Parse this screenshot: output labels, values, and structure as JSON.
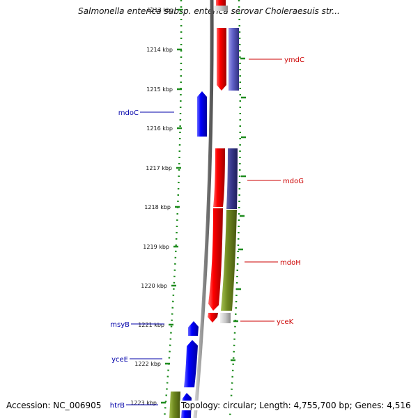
{
  "title": "Salmonella enterica subsp. enterica serovar Choleraesuis str...",
  "footer": {
    "accession": "Accession: NC_006905",
    "summary": "Topology: circular; Length: 4,755,700 bp; Genes: 4,516"
  },
  "colors": {
    "forward_cds": "#e00000",
    "reverse_cds": "#0000e0",
    "cog_purple": "#6060c8",
    "cog_olive": "#708a20",
    "cog_gray": "#b8b8b8",
    "backbone": "#888888",
    "tick_green": "#1e8c1e",
    "label_red": "#cc0000",
    "label_blue": "#0000aa"
  },
  "ticks": [
    "1213 kbp",
    "1214 kbp",
    "1215 kbp",
    "1216 kbp",
    "1217 kbp",
    "1218 kbp",
    "1219 kbp",
    "1220 kbp",
    "1221 kbp",
    "1222 kbp",
    "1223 kbp"
  ],
  "genes": [
    {
      "name": "ymdC",
      "strand": "forward",
      "cog": "purple"
    },
    {
      "name": "mdoC",
      "strand": "reverse"
    },
    {
      "name": "mdoG",
      "strand": "forward",
      "cog": "purple"
    },
    {
      "name": "mdoH",
      "strand": "forward",
      "cog": "olive"
    },
    {
      "name": "yceK",
      "strand": "forward",
      "cog": "gray"
    },
    {
      "name": "msyB",
      "strand": "reverse"
    },
    {
      "name": "yceE",
      "strand": "reverse"
    },
    {
      "name": "htrB",
      "strand": "reverse",
      "cog": "olive"
    }
  ]
}
